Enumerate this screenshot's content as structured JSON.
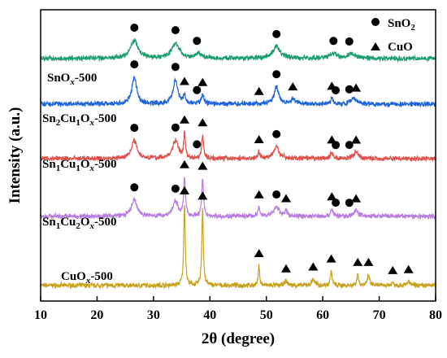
{
  "chart_data": {
    "type": "line",
    "xlabel": "2θ (degree)",
    "ylabel": "Intensity (a.u.)",
    "xlim": [
      10,
      80
    ],
    "xticks": [
      10,
      20,
      30,
      40,
      50,
      60,
      70,
      80
    ],
    "grid": false,
    "legend": {
      "placement": "top-right",
      "entries": [
        {
          "marker": "circle",
          "label": "SnO₂"
        },
        {
          "marker": "triangle",
          "label": "CuO"
        }
      ]
    },
    "series": [
      {
        "name": "CuOx-500",
        "color": "#c8a21e",
        "peaks": [
          {
            "x": 35.5,
            "h": 0.92,
            "w": 0.16
          },
          {
            "x": 38.7,
            "h": 0.86,
            "w": 0.16
          },
          {
            "x": 48.7,
            "h": 0.22,
            "w": 0.15
          },
          {
            "x": 53.5,
            "h": 0.05,
            "w": 0.3
          },
          {
            "x": 58.3,
            "h": 0.07,
            "w": 0.3
          },
          {
            "x": 61.5,
            "h": 0.16,
            "w": 0.18
          },
          {
            "x": 66.2,
            "h": 0.12,
            "w": 0.2
          },
          {
            "x": 68.1,
            "h": 0.12,
            "w": 0.2
          },
          {
            "x": 72.4,
            "h": 0.03,
            "w": 0.3
          },
          {
            "x": 75.2,
            "h": 0.04,
            "w": 0.3
          }
        ],
        "markers": [
          {
            "type": "triangle",
            "x": 35.5
          },
          {
            "type": "triangle",
            "x": 38.7
          },
          {
            "type": "triangle",
            "x": 48.7
          },
          {
            "type": "triangle",
            "x": 53.5
          },
          {
            "type": "triangle",
            "x": 58.3
          },
          {
            "type": "triangle",
            "x": 61.5
          },
          {
            "type": "triangle",
            "x": 66.2
          },
          {
            "type": "triangle",
            "x": 68.1
          },
          {
            "type": "triangle",
            "x": 72.4
          },
          {
            "type": "triangle",
            "x": 75.2
          }
        ]
      },
      {
        "name": "Sn1Cu2Ox-500",
        "color": "#b87ce0",
        "peaks": [
          {
            "x": 26.6,
            "h": 0.18,
            "w": 0.6
          },
          {
            "x": 33.9,
            "h": 0.16,
            "w": 0.6
          },
          {
            "x": 35.5,
            "h": 0.42,
            "w": 0.18
          },
          {
            "x": 38.7,
            "h": 0.42,
            "w": 0.18
          },
          {
            "x": 48.7,
            "h": 0.1,
            "w": 0.2
          },
          {
            "x": 51.8,
            "h": 0.1,
            "w": 0.6
          },
          {
            "x": 53.5,
            "h": 0.05,
            "w": 0.3
          },
          {
            "x": 61.6,
            "h": 0.08,
            "w": 0.25
          },
          {
            "x": 65.9,
            "h": 0.06,
            "w": 0.5
          }
        ],
        "markers": [
          {
            "type": "circle",
            "x": 26.6
          },
          {
            "type": "circle",
            "x": 33.9
          },
          {
            "type": "triangle",
            "x": 35.5
          },
          {
            "type": "triangle",
            "x": 38.7
          },
          {
            "type": "triangle",
            "x": 48.7
          },
          {
            "type": "circle",
            "x": 51.8
          },
          {
            "type": "triangle",
            "x": 53.5
          },
          {
            "type": "triangle",
            "x": 61.6
          },
          {
            "type": "circle",
            "x": 62.3
          },
          {
            "type": "circle",
            "x": 64.7
          },
          {
            "type": "triangle",
            "x": 65.9
          }
        ]
      },
      {
        "name": "Sn1Cu1Ox-500",
        "color": "#e0504a",
        "peaks": [
          {
            "x": 26.6,
            "h": 0.2,
            "w": 0.6
          },
          {
            "x": 33.9,
            "h": 0.2,
            "w": 0.6
          },
          {
            "x": 35.5,
            "h": 0.27,
            "w": 0.18
          },
          {
            "x": 38.7,
            "h": 0.26,
            "w": 0.2
          },
          {
            "x": 48.7,
            "h": 0.07,
            "w": 0.2
          },
          {
            "x": 51.8,
            "h": 0.13,
            "w": 0.6
          },
          {
            "x": 61.6,
            "h": 0.07,
            "w": 0.25
          },
          {
            "x": 65.9,
            "h": 0.07,
            "w": 0.5
          }
        ],
        "markers": [
          {
            "type": "circle",
            "x": 26.6
          },
          {
            "type": "circle",
            "x": 33.9
          },
          {
            "type": "triangle",
            "x": 35.5
          },
          {
            "type": "circle",
            "x": 37.7
          },
          {
            "type": "triangle",
            "x": 38.7
          },
          {
            "type": "triangle",
            "x": 48.7
          },
          {
            "type": "circle",
            "x": 51.8
          },
          {
            "type": "triangle",
            "x": 61.6
          },
          {
            "type": "circle",
            "x": 62.3
          },
          {
            "type": "circle",
            "x": 64.7
          },
          {
            "type": "triangle",
            "x": 65.9
          }
        ]
      },
      {
        "name": "Sn2Cu1Ox-500",
        "color": "#1f63d8",
        "peaks": [
          {
            "x": 26.6,
            "h": 0.3,
            "w": 0.5
          },
          {
            "x": 33.9,
            "h": 0.27,
            "w": 0.5
          },
          {
            "x": 35.5,
            "h": 0.09,
            "w": 0.2
          },
          {
            "x": 38.7,
            "h": 0.1,
            "w": 0.3
          },
          {
            "x": 51.8,
            "h": 0.19,
            "w": 0.5
          },
          {
            "x": 54.7,
            "h": 0.05,
            "w": 0.5
          },
          {
            "x": 61.6,
            "h": 0.06,
            "w": 0.3
          },
          {
            "x": 65.5,
            "h": 0.06,
            "w": 0.6
          }
        ],
        "markers": [
          {
            "type": "circle",
            "x": 26.6
          },
          {
            "type": "circle",
            "x": 33.9
          },
          {
            "type": "triangle",
            "x": 35.5
          },
          {
            "type": "circle",
            "x": 37.7
          },
          {
            "type": "triangle",
            "x": 38.7
          },
          {
            "type": "triangle",
            "x": 48.7
          },
          {
            "type": "circle",
            "x": 51.8
          },
          {
            "type": "triangle",
            "x": 54.7
          },
          {
            "type": "triangle",
            "x": 61.6
          },
          {
            "type": "circle",
            "x": 62.3
          },
          {
            "type": "circle",
            "x": 64.7
          },
          {
            "type": "triangle",
            "x": 65.9
          }
        ]
      },
      {
        "name": "SnOx-500",
        "color": "#1c9e6c",
        "peaks": [
          {
            "x": 26.6,
            "h": 0.2,
            "w": 0.8
          },
          {
            "x": 33.9,
            "h": 0.17,
            "w": 0.8
          },
          {
            "x": 37.9,
            "h": 0.05,
            "w": 0.8
          },
          {
            "x": 51.8,
            "h": 0.13,
            "w": 0.8
          },
          {
            "x": 61.9,
            "h": 0.05,
            "w": 0.8
          },
          {
            "x": 65.0,
            "h": 0.05,
            "w": 0.8
          }
        ],
        "markers": [
          {
            "type": "circle",
            "x": 26.6
          },
          {
            "type": "circle",
            "x": 33.9
          },
          {
            "type": "circle",
            "x": 37.7
          },
          {
            "type": "circle",
            "x": 51.8
          },
          {
            "type": "circle",
            "x": 61.9
          },
          {
            "type": "circle",
            "x": 64.7
          }
        ]
      }
    ]
  },
  "labels": {
    "cuo": {
      "pre": "CuO",
      "x": "x",
      "post": "-500"
    },
    "sn1cu2": {
      "pre": "Sn",
      "s1": "1",
      "mid": "Cu",
      "s2": "2",
      "o": "O",
      "x": "x",
      "post": "-500"
    },
    "sn1cu1": {
      "pre": "Sn",
      "s1": "1",
      "mid": "Cu",
      "s2": "1",
      "o": "O",
      "x": "x",
      "post": "-500"
    },
    "sn2cu1": {
      "pre": "Sn",
      "s1": "2",
      "mid": "Cu",
      "s2": "1",
      "o": "O",
      "x": "x",
      "post": "-500"
    },
    "snox": {
      "pre": "SnO",
      "x": "x",
      "post": "-500"
    },
    "legend_sno2": {
      "base": "SnO",
      "sub": "2"
    },
    "legend_cuo": "CuO"
  }
}
